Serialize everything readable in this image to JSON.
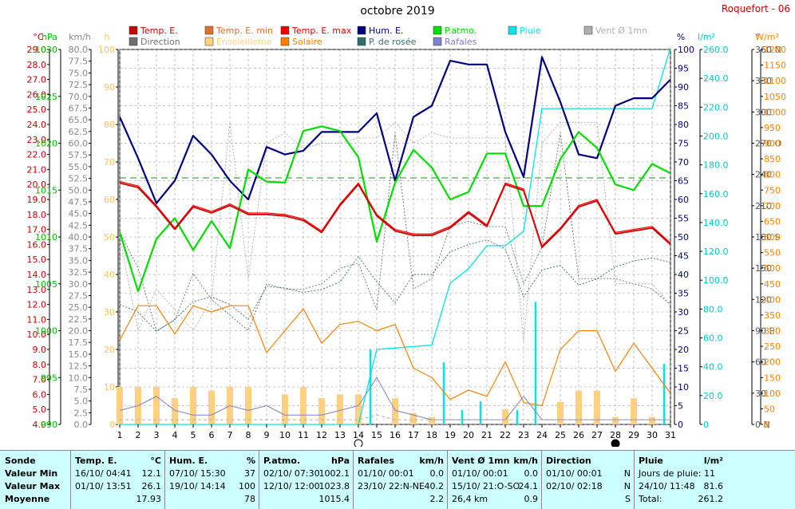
{
  "header": {
    "title": "octobre 2019",
    "station": "Roquefort - 06"
  },
  "colors": {
    "temp": "#cc0000",
    "temp_min": "#e07030",
    "temp_max": "#ee0000",
    "hum": "#000080",
    "patm": "#00dd00",
    "pluie": "#00e5e5",
    "vent": "#b0b0b0",
    "direction": "#707070",
    "ensol": "#ffd080",
    "solaire": "#ff8000",
    "rosee": "#2f6f6f",
    "rafales": "#8080d0",
    "seuil": "#00aa00"
  },
  "legend": [
    {
      "label": "Temp. E.",
      "color": "#cc0000"
    },
    {
      "label": "Temp. E. min",
      "color": "#e07030"
    },
    {
      "label": "Temp. E. max",
      "color": "#ee0000"
    },
    {
      "label": "Hum. E.",
      "color": "#000080"
    },
    {
      "label": "P.atmo.",
      "color": "#00dd00"
    },
    {
      "label": "Pluie",
      "color": "#00e5e5"
    },
    {
      "label": "Vent Ø 1mn",
      "color": "#b0b0b0"
    },
    {
      "label": "Direction",
      "color": "#707070"
    },
    {
      "label": "Ensoleilleme",
      "color": "#ffd080"
    },
    {
      "label": "Solaire",
      "color": "#ff8000"
    },
    {
      "label": "P. de rosée",
      "color": "#2f6f6f"
    },
    {
      "label": "Rafales",
      "color": "#8080d0"
    }
  ],
  "axis_units": [
    "°C",
    "hPa",
    "km/h",
    "h",
    "%",
    "l/m²",
    "°",
    "W/m²"
  ],
  "chart_data": {
    "type": "line",
    "x": [
      1,
      2,
      3,
      4,
      5,
      6,
      7,
      8,
      9,
      10,
      11,
      12,
      13,
      14,
      15,
      16,
      17,
      18,
      19,
      20,
      21,
      22,
      23,
      24,
      25,
      26,
      27,
      28,
      29,
      30,
      31
    ],
    "xlim": [
      1,
      31
    ],
    "axes": {
      "temp_c": {
        "min": 4.0,
        "max": 29.0,
        "step": 1.0,
        "labels": [
          "4.0",
          "5.0",
          "6.0",
          "7.0",
          "8.0",
          "9.0",
          "10.0",
          "11.0",
          "12.0",
          "13.0",
          "14.0",
          "15.0",
          "16.0",
          "17.0",
          "18.0",
          "19.0",
          "20.0",
          "21.0",
          "22.0",
          "23.0",
          "24.0",
          "25.0",
          "26.0",
          "27.0",
          "28.0",
          "29.0"
        ]
      },
      "pressure_hpa": {
        "min": 990,
        "max": 1030,
        "step": 5,
        "labels": [
          "990",
          "995",
          "1000",
          "1005",
          "1010",
          "1015",
          "1020",
          "1025",
          "1030"
        ]
      },
      "wind_kmh": {
        "min": 0.0,
        "max": 80.0,
        "step": 2.5,
        "labels": [
          "0.0",
          "2.5",
          "5.0",
          "7.5",
          "10.0",
          "12.5",
          "15.0",
          "17.5",
          "20.0",
          "22.5",
          "25.0",
          "27.5",
          "30.0",
          "32.5",
          "35.0",
          "37.5",
          "40.0",
          "42.5",
          "45.0",
          "47.5",
          "50.0",
          "52.5",
          "55.0",
          "57.5",
          "60.0",
          "62.5",
          "65.0",
          "67.5",
          "70.0",
          "72.5",
          "75.0",
          "77.5",
          "80.0"
        ]
      },
      "sun_h": {
        "min": 0,
        "max": 100,
        "step": 10,
        "labels": [
          "0",
          "10",
          "20",
          "30",
          "40",
          "50",
          "60",
          "70",
          "80",
          "90",
          "100"
        ]
      },
      "humidity_pct": {
        "min": 0,
        "max": 100,
        "step": 5,
        "labels": [
          "0",
          "5",
          "10",
          "15",
          "20",
          "25",
          "30",
          "35",
          "40",
          "45",
          "50",
          "55",
          "60",
          "65",
          "70",
          "75",
          "80",
          "85",
          "90",
          "95",
          "100"
        ]
      },
      "rain_lm2": {
        "min": 0,
        "max": 260,
        "step": 20,
        "labels": [
          "0",
          "20.0",
          "40.0",
          "60.0",
          "80.0",
          "100.0",
          "120.0",
          "140.0",
          "160.0",
          "180.0",
          "200.0",
          "220.0",
          "240.0",
          "260.0"
        ]
      },
      "direction_deg": {
        "min": 0,
        "max": 360,
        "step": 30,
        "labels": [
          "0 N",
          "30",
          "60",
          "90 E",
          "120",
          "150",
          "180 S",
          "210",
          "240",
          "270 O",
          "300",
          "330",
          "360 N"
        ]
      },
      "solar_wm2": {
        "min": 0,
        "max": 1200,
        "step": 50,
        "labels": [
          "0",
          "50",
          "100",
          "150",
          "200",
          "250",
          "300",
          "350",
          "400",
          "450",
          "500",
          "550",
          "600",
          "650",
          "700",
          "750",
          "800",
          "850",
          "900",
          "950",
          "1000",
          "1050",
          "1100",
          "1150",
          "1200"
        ]
      }
    },
    "pressure_reference_hpa": 1016.3,
    "series": [
      {
        "name": "Hum. E.",
        "axis": "humidity_pct",
        "key": "hum",
        "width": 2.2,
        "values": [
          82,
          71,
          59,
          65,
          77,
          72,
          65,
          60,
          74,
          72,
          73,
          78,
          78,
          78,
          83,
          65,
          82,
          85,
          97,
          96,
          96,
          78,
          66,
          98,
          86,
          72,
          71,
          85,
          87,
          87,
          92
        ]
      },
      {
        "name": "P.atmo.",
        "axis": "pressure_hpa",
        "key": "patm",
        "width": 2.2,
        "values": [
          1010.5,
          1004.2,
          1009.8,
          1012.0,
          1008.6,
          1011.7,
          1008.8,
          1017.2,
          1015.9,
          1015.8,
          1021.3,
          1021.8,
          1021.3,
          1018.5,
          1009.5,
          1015.8,
          1019.3,
          1017.4,
          1014.0,
          1014.8,
          1018.9,
          1018.9,
          1013.3,
          1013.3,
          1018.3,
          1021.2,
          1019.5,
          1015.6,
          1015.0,
          1017.8,
          1016.8
        ]
      },
      {
        "name": "Temp. E.",
        "axis": "temp_c",
        "key": "temp",
        "width": 1.8,
        "values": [
          20.1,
          19.8,
          18.5,
          17.0,
          18.5,
          18.1,
          18.6,
          18.0,
          18.0,
          17.9,
          17.6,
          16.8,
          18.6,
          20.0,
          17.9,
          16.9,
          16.6,
          16.6,
          17.1,
          18.1,
          17.2,
          20.0,
          19.6,
          15.8,
          17.0,
          18.5,
          18.9,
          16.7,
          16.9,
          17.1,
          16.0
        ]
      },
      {
        "name": "Temp. E. max",
        "axis": "temp_c",
        "key": "temp_max",
        "width": 1.2,
        "values": [
          20.2,
          19.9,
          18.6,
          17.1,
          18.6,
          18.2,
          18.7,
          18.1,
          18.1,
          18.0,
          17.7,
          16.9,
          18.7,
          20.1,
          18.0,
          17.0,
          16.7,
          16.7,
          17.2,
          18.2,
          17.3,
          20.1,
          19.7,
          15.9,
          17.1,
          18.6,
          19.0,
          16.8,
          17.0,
          17.2,
          16.1
        ]
      },
      {
        "name": "Solaire",
        "axis": "solar_wm2",
        "key": "solaire",
        "width": 1.2,
        "values": [
          270,
          380,
          380,
          290,
          380,
          360,
          380,
          380,
          230,
          300,
          370,
          260,
          320,
          330,
          300,
          320,
          180,
          150,
          80,
          110,
          90,
          200,
          70,
          60,
          240,
          300,
          300,
          170,
          260,
          180,
          100
        ]
      },
      {
        "name": "Rafales",
        "axis": "wind_kmh",
        "key": "rafales",
        "width": 1.0,
        "values": [
          3,
          4,
          6,
          3,
          2,
          2,
          4,
          3,
          4,
          2,
          2,
          2,
          3,
          4,
          10,
          3,
          2,
          1,
          1,
          1,
          1,
          1,
          6,
          1,
          1,
          1,
          1,
          1,
          1,
          1,
          1
        ]
      },
      {
        "name": "Vent Ø 1mn",
        "axis": "wind_kmh",
        "key": "vent",
        "width": 1.0,
        "dashed": true,
        "values": [
          1,
          1,
          1,
          1,
          1,
          1,
          1,
          1,
          1,
          1,
          1,
          1,
          1,
          1,
          2,
          1,
          1,
          1,
          1,
          1,
          1,
          1,
          1,
          1,
          1,
          1,
          1,
          1,
          1,
          1,
          1
        ]
      }
    ],
    "dotted_series": [
      {
        "name": "Direction",
        "axis": "direction_deg",
        "key": "direction",
        "values": [
          185,
          150,
          90,
          100,
          145,
          120,
          105,
          90,
          135,
          130,
          130,
          135,
          150,
          155,
          110,
          280,
          130,
          140,
          190,
          195,
          190,
          190,
          135,
          170,
          280,
          140,
          140,
          140,
          135,
          130,
          115
        ]
      },
      {
        "name": "P. de rosée",
        "axis": "temp_c",
        "key": "rosee",
        "values": [
          12.0,
          11.5,
          10.2,
          11.0,
          12.2,
          12.5,
          12.0,
          11.0,
          13.2,
          13.1,
          12.8,
          13.0,
          13.5,
          15.2,
          13.5,
          12.1,
          14.0,
          14.0,
          15.5,
          16.0,
          16.3,
          15.7,
          12.5,
          14.3,
          14.6,
          13.3,
          13.7,
          14.5,
          14.9,
          15.1,
          14.8
        ]
      },
      {
        "name": "Vent Ø 1mn (dir)",
        "axis": "direction_deg",
        "key": "vent",
        "values": [
          180,
          90,
          130,
          110,
          90,
          120,
          290,
          140,
          270,
          280,
          265,
          270,
          270,
          275,
          275,
          290,
          270,
          280,
          275,
          275,
          275,
          275,
          80,
          270,
          290,
          290,
          290,
          135,
          135,
          135,
          115
        ]
      }
    ],
    "rain_cumulative": {
      "name": "Pluie",
      "axis": "rain_lm2",
      "key": "pluie",
      "values": [
        0,
        0,
        0,
        0,
        0,
        0,
        0,
        0,
        0,
        0,
        0,
        0,
        0,
        0,
        52,
        53,
        54,
        55,
        98,
        108,
        124,
        124,
        134,
        219,
        219,
        219,
        219,
        219,
        219,
        219,
        261.2
      ]
    },
    "rain_daily_bars": {
      "axis": "rain_lm2",
      "key": "pluie",
      "days": [
        15,
        19,
        20,
        21,
        23,
        24,
        31
      ],
      "values": [
        52,
        43,
        10,
        16,
        10,
        85,
        42
      ]
    },
    "sunshine_bars": {
      "name": "Ensoleilleme",
      "axis": "sun_h",
      "key": "ensol",
      "values": [
        10,
        10,
        10,
        7,
        10,
        9,
        10,
        10,
        0,
        8,
        10,
        7,
        8,
        8,
        0,
        7,
        3,
        2,
        0,
        0,
        0,
        4,
        0,
        0,
        6,
        9,
        9,
        2,
        7,
        2,
        0
      ]
    }
  },
  "summary": {
    "columns": [
      {
        "x": 0,
        "w": 88,
        "rows": [
          [
            "Sonde"
          ],
          [
            "Valeur Min"
          ],
          [
            "Valeur Max"
          ],
          [
            "Moyenne"
          ]
        ]
      },
      {
        "x": 88,
        "w": 118,
        "rows": [
          [
            "Temp. E.",
            "°C"
          ],
          [
            "16/10/  04:41",
            "12.1"
          ],
          [
            "01/10/  13:51",
            "26.1"
          ],
          [
            "",
            "17.93"
          ]
        ]
      },
      {
        "x": 206,
        "w": 118,
        "rows": [
          [
            "Hum. E.",
            "%"
          ],
          [
            "07/10/  15:30",
            "37"
          ],
          [
            "19/10/  14:14",
            "100"
          ],
          [
            "",
            "78"
          ]
        ]
      },
      {
        "x": 324,
        "w": 118,
        "rows": [
          [
            "P.atmo.",
            "hPa"
          ],
          [
            "02/10/  07:30",
            "1002.1"
          ],
          [
            "12/10/  12:00",
            "1023.8"
          ],
          [
            "",
            "1015.4"
          ]
        ]
      },
      {
        "x": 442,
        "w": 118,
        "rows": [
          [
            "Rafales",
            "km/h"
          ],
          [
            "01/10/  00:01",
            "0.0"
          ],
          [
            "23/10/  22:N-NE",
            "40.2"
          ],
          [
            "",
            "2.2"
          ]
        ]
      },
      {
        "x": 560,
        "w": 118,
        "rows": [
          [
            "Vent Ø 1mn",
            "km/h"
          ],
          [
            "01/10/  00:01",
            "0.0"
          ],
          [
            "15/10/  21:O-SO",
            "24.1"
          ],
          [
            "26,4 km",
            "0.9"
          ]
        ]
      },
      {
        "x": 678,
        "w": 116,
        "rows": [
          [
            "Direction",
            ""
          ],
          [
            "01/10/  00:01",
            "N"
          ],
          [
            "02/10/  02:18",
            "N"
          ],
          [
            "",
            "S"
          ]
        ]
      },
      {
        "x": 794,
        "w": 116,
        "rows": [
          [
            "Pluie",
            "l/m²"
          ],
          [
            "Jours de pluie: 11",
            ""
          ],
          [
            "24/10/  11:48",
            "81.6"
          ],
          [
            "Total:",
            "261.2"
          ]
        ]
      }
    ]
  }
}
